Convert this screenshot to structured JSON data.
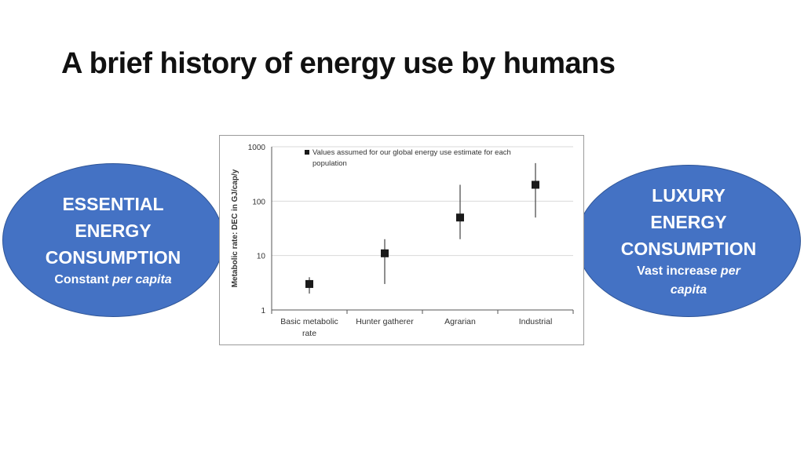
{
  "slide": {
    "title": "A brief history of energy use by humans"
  },
  "left_bubble": {
    "line1": "ESSENTIAL",
    "line2": "ENERGY",
    "line3": "CONSUMPTION",
    "sub_plain": "Constant ",
    "sub_italic": "per capita"
  },
  "right_bubble": {
    "line1": "LUXURY",
    "line2": "ENERGY",
    "line3": "CONSUMPTION",
    "sub_plain": "Vast increase ",
    "sub_italic": "per",
    "sub_italic2": "capita"
  },
  "colors": {
    "bubble_fill": "#4472c4",
    "bubble_border": "#2f5597",
    "marker": "#1a1a1a",
    "gridline": "#d9d9d9"
  },
  "chart_data": {
    "type": "scatter",
    "yscale": "log",
    "ylim": [
      1,
      1000
    ],
    "yticks": [
      "1",
      "10",
      "100",
      "1000"
    ],
    "ylabel": "Metabolic rate: DEC in GJ/cap/y",
    "xlabel": "",
    "categories": [
      "Basic metabolic rate",
      "Hunter gatherer",
      "Agrarian",
      "Industrial"
    ],
    "category_lines": [
      [
        "Basic metabolic",
        "rate"
      ],
      [
        "Hunter gatherer"
      ],
      [
        "Agrarian"
      ],
      [
        "Industrial"
      ]
    ],
    "values": [
      3,
      11,
      50,
      200
    ],
    "error_low": [
      2,
      3,
      20,
      50
    ],
    "error_high": [
      4,
      20,
      200,
      500
    ],
    "legend": "Values assumed for our global energy use estimate for each population",
    "legend_lines": [
      "Values assumed for our global energy use estimate for each",
      "population"
    ],
    "grid": "horizontal",
    "legend_position": "top"
  }
}
